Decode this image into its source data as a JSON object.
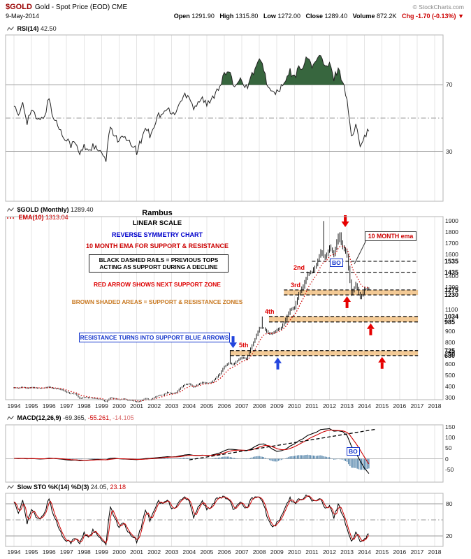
{
  "header": {
    "symbol": "$GOLD",
    "title": "Gold - Spot Price (EOD) CME",
    "copyright": "© StockCharts.com",
    "date": "9-May-2014",
    "quote": {
      "open_label": "Open",
      "open": "1291.90",
      "high_label": "High",
      "high": "1315.80",
      "low_label": "Low",
      "low": "1272.00",
      "close_label": "Close",
      "close": "1289.40",
      "volume_label": "Volume",
      "volume": "872.2K",
      "chg_label": "Chg",
      "chg": "-1.70 (-0.13%)",
      "chg_arrow": "▼"
    }
  },
  "legends": {
    "rsi_name": "RSI(14)",
    "rsi_value": "42.50",
    "price_name": "$GOLD (Monthly)",
    "price_value": "1289.40",
    "ema_name": "EMA(10)",
    "ema_value": "1313.04",
    "macd_name": "MACD(12,26,9)",
    "macd_v1": "-69.365,",
    "macd_v2": "-55.261,",
    "macd_v3": "-14.105",
    "sto_name": "Slow STO %K(14) %D(3)",
    "sto_v1": "24.05,",
    "sto_v2": "23.18"
  },
  "annotations": {
    "rambus": "Rambus",
    "linear_scale": "LINEAR SCALE",
    "reverse_symmetry": "REVERSE SYMMETRY CHART",
    "ema_rule": "10 MONTH EMA FOR SUPPORT & RESISTANCE",
    "rails_line1": "BLACK DASHED RAILS = PREVIOUS TOPS",
    "rails_line2": "ACTING AS SUPPORT DURING A DECLINE",
    "red_arrow_note": "RED ARROW SHOWS NEXT SUPPORT ZONE",
    "brown_note": "BROWN SHADED AREAS = SUPPORT & RESISTANCE ZONES",
    "blue_arrow_note": "RESISTANCE TURNS INTO SUPPORT BLUE ARROWS",
    "ema_callout": "10 MONTH ema",
    "bo": "BO",
    "top_2": "2nd",
    "top_3": "3rd",
    "top_4": "4th",
    "top_5": "5th"
  },
  "colors": {
    "red": "#cc0000",
    "blue": "#1133cc",
    "arrow_red": "#e60000",
    "arrow_blue": "#2244dd",
    "band": "#e8962e",
    "hist": "#4f81a8",
    "rsi_fill": "#37663e",
    "maroon": "#990000",
    "brown": "#c87820"
  },
  "chart_data": {
    "type": "line",
    "x_ticks": [
      1994,
      1995,
      1996,
      1997,
      1998,
      1999,
      2000,
      2001,
      2002,
      2003,
      2004,
      2005,
      2006,
      2007,
      2008,
      2009,
      2010,
      2011,
      2012,
      2013,
      2014,
      2015,
      2016,
      2017,
      2018
    ],
    "x_range": [
      1994,
      2018.5
    ],
    "rsi": {
      "type": "line",
      "name": "RSI(14)",
      "current": 42.5,
      "y_range": [
        0,
        100
      ],
      "y_ticks": [
        70,
        30
      ],
      "mid_dash": 50,
      "overbought": 70,
      "oversold": 30,
      "series": {
        "start": 1994,
        "step": 0.25,
        "values": [
          58,
          50,
          60,
          48,
          55,
          50,
          48,
          52,
          62,
          50,
          46,
          40,
          38,
          34,
          35,
          28,
          33,
          31,
          33,
          31,
          28,
          25,
          45,
          40,
          36,
          39,
          35,
          34,
          30,
          36,
          45,
          40,
          46,
          52,
          52,
          56,
          52,
          54,
          60,
          64,
          64,
          56,
          60,
          62,
          58,
          60,
          66,
          70,
          76,
          78,
          70,
          72,
          74,
          68,
          74,
          80,
          84,
          80,
          68,
          65,
          66,
          68,
          72,
          78,
          74,
          80,
          82,
          86,
          82,
          84,
          88,
          80,
          82,
          74,
          80,
          72,
          62,
          38,
          45,
          35,
          40,
          42.5
        ]
      }
    },
    "price": {
      "type": "bar",
      "name": "$GOLD Monthly close (approx USD)",
      "current": 1289.4,
      "ema10_current": 1313.04,
      "y_range": [
        280,
        1940
      ],
      "y_ticks": [
        1900,
        1800,
        1700,
        1600,
        1400,
        1300,
        1100,
        900,
        800,
        700,
        600,
        500,
        400,
        300
      ],
      "key_levels": [
        1535,
        1435,
        1275,
        1230,
        1034,
        985,
        725,
        680
      ],
      "bands": [
        {
          "top": 1275,
          "bottom": 1230,
          "x_start": 2009.4
        },
        {
          "top": 1034,
          "bottom": 985,
          "x_start": 2008.55
        },
        {
          "top": 725,
          "bottom": 680,
          "x_start": 2006.35
        }
      ],
      "rails": [
        {
          "value": 1535,
          "x_start": 2011.0
        },
        {
          "value": 1435,
          "x_start": 2010.35
        }
      ],
      "zones_x_end": 2017.05,
      "spikes": [
        {
          "x": 2006.35,
          "high": 730
        },
        {
          "x": 2008.17,
          "high": 1034
        },
        {
          "x": 2011.67,
          "high": 1900
        },
        {
          "x": 2012.7,
          "high": 1798
        }
      ],
      "arrows": [
        {
          "x": 2012.9,
          "value": 1845,
          "dir": "down",
          "color": "red"
        },
        {
          "x": 2013.0,
          "value": 1218,
          "dir": "up",
          "color": "red"
        },
        {
          "x": 2014.35,
          "value": 972,
          "dir": "up",
          "color": "red"
        },
        {
          "x": 2015.0,
          "value": 668,
          "dir": "up",
          "color": "red"
        },
        {
          "x": 2006.5,
          "value": 748,
          "dir": "down",
          "color": "blue"
        },
        {
          "x": 2009.05,
          "value": 662,
          "dir": "up",
          "color": "blue"
        }
      ],
      "series": {
        "start": 1994,
        "step": 0.25,
        "values": [
          389,
          385,
          394,
          383,
          392,
          387,
          384,
          387,
          396,
          382,
          379,
          369,
          348,
          334,
          332,
          290,
          301,
          296,
          293,
          288,
          280,
          261,
          299,
          290,
          278,
          288,
          273,
          272,
          258,
          270,
          293,
          277,
          301,
          318,
          323,
          347,
          334,
          346,
          388,
          417,
          423,
          395,
          419,
          438,
          428,
          437,
          473,
          517,
          582,
          613,
          599,
          636,
          663,
          650,
          743,
          833,
          933,
          930,
          884,
          882,
          916,
          934,
          1008,
          1096,
          1113,
          1244,
          1307,
          1421,
          1439,
          1502,
          1620,
          1566,
          1662,
          1597,
          1772,
          1664,
          1594,
          1234,
          1327,
          1202,
          1283,
          1289
        ]
      }
    },
    "macd": {
      "type": "line",
      "name": "MACD(12,26,9)",
      "legend_values": [
        -69.365,
        -55.261,
        -14.105
      ],
      "y_range": [
        -110,
        160
      ],
      "y_ticks": [
        150,
        100,
        50,
        0,
        -50
      ],
      "trendline": {
        "x1": 2004.0,
        "v1": -5,
        "x2": 2014.7,
        "v2": 140
      },
      "series": {
        "start": 1994,
        "step": 0.25,
        "values": [
          2,
          1,
          2,
          0,
          1,
          0,
          -1,
          0,
          3,
          2,
          0,
          -2,
          -5,
          -7,
          -6,
          -9,
          -8,
          -6,
          -4,
          -3,
          -4,
          -5,
          2,
          3,
          0,
          -1,
          -2,
          -3,
          -4,
          -2,
          1,
          2,
          4,
          6,
          8,
          10,
          9,
          10,
          14,
          18,
          20,
          16,
          15,
          17,
          16,
          17,
          22,
          28,
          38,
          45,
          44,
          42,
          40,
          38,
          45,
          58,
          68,
          70,
          60,
          45,
          35,
          38,
          45,
          60,
          70,
          85,
          95,
          110,
          118,
          125,
          138,
          140,
          142,
          130,
          132,
          128,
          110,
          60,
          30,
          -10,
          -45,
          -69.4
        ]
      }
    },
    "sto": {
      "type": "line",
      "name": "Slow STO %K(14) %D(3)",
      "legend_values": [
        24.05,
        23.18
      ],
      "y_range": [
        0,
        100
      ],
      "y_ticks": [
        80,
        20
      ],
      "mid_dash": 50,
      "series": {
        "start": 1994,
        "step": 0.25,
        "values": [
          85,
          60,
          88,
          45,
          70,
          55,
          50,
          65,
          90,
          60,
          40,
          20,
          12,
          8,
          15,
          5,
          25,
          18,
          30,
          22,
          10,
          5,
          75,
          55,
          35,
          45,
          25,
          20,
          10,
          35,
          70,
          50,
          70,
          85,
          80,
          88,
          70,
          75,
          88,
          92,
          88,
          55,
          75,
          85,
          70,
          72,
          90,
          94,
          92,
          88,
          70,
          80,
          84,
          70,
          88,
          94,
          90,
          80,
          50,
          35,
          45,
          55,
          75,
          90,
          80,
          88,
          92,
          95,
          88,
          85,
          90,
          70,
          75,
          55,
          80,
          60,
          35,
          8,
          25,
          12,
          15,
          24
        ]
      }
    }
  }
}
